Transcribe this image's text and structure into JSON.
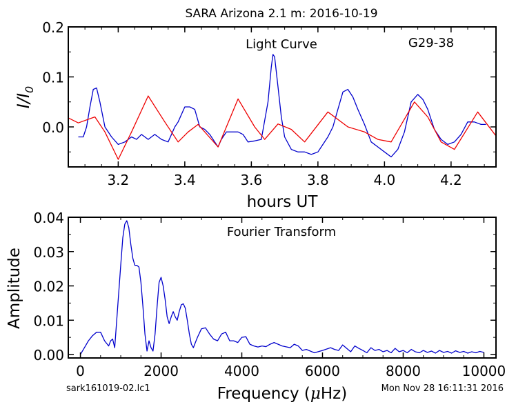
{
  "figure": {
    "title": "SARA Arizona 2.1 m:  2016-10-19",
    "filename": "sark161019-02.lc1",
    "timestamp": "Mon Nov 28 16:11:31 2016"
  },
  "chart_data": [
    {
      "type": "line",
      "panel": "top",
      "label": "Light Curve",
      "annotation": "G29-38",
      "xlabel": "hours UT",
      "ylabel_main": "I/I",
      "ylabel_sub": "0",
      "xlim": [
        3.05,
        4.335
      ],
      "ylim": [
        -0.08,
        0.2
      ],
      "xticks": [
        3.2,
        3.4,
        3.6,
        3.8,
        4.0,
        4.2
      ],
      "xtick_labels": [
        "3.2",
        "3.4",
        "3.6",
        "3.8",
        "4.0",
        "4.2"
      ],
      "yticks": [
        0.0,
        0.1,
        0.2
      ],
      "ytick_labels": [
        "0.0",
        "0.1",
        "0.2"
      ],
      "grid": false,
      "series": [
        {
          "color": "#0000cc",
          "x": [
            3.08,
            3.095,
            3.105,
            3.115,
            3.125,
            3.135,
            3.145,
            3.16,
            3.18,
            3.2,
            3.22,
            3.24,
            3.255,
            3.27,
            3.29,
            3.31,
            3.33,
            3.35,
            3.37,
            3.38,
            3.4,
            3.415,
            3.43,
            3.445,
            3.46,
            3.475,
            3.49,
            3.5,
            3.51,
            3.525,
            3.54,
            3.56,
            3.575,
            3.59,
            3.61,
            3.63,
            3.65,
            3.66,
            3.665,
            3.67,
            3.68,
            3.69,
            3.7,
            3.72,
            3.74,
            3.76,
            3.78,
            3.8,
            3.815,
            3.83,
            3.845,
            3.86,
            3.875,
            3.89,
            3.905,
            3.92,
            3.94,
            3.96,
            3.98,
            4.0,
            4.02,
            4.04,
            4.06,
            4.08,
            4.1,
            4.115,
            4.13,
            4.15,
            4.17,
            4.19,
            4.21,
            4.23,
            4.25,
            4.27,
            4.29,
            4.305
          ],
          "y": [
            -0.02,
            -0.02,
            0.0,
            0.04,
            0.075,
            0.078,
            0.05,
            0.0,
            -0.02,
            -0.035,
            -0.03,
            -0.02,
            -0.025,
            -0.015,
            -0.025,
            -0.015,
            -0.025,
            -0.03,
            0.0,
            0.01,
            0.04,
            0.04,
            0.035,
            0.0,
            -0.005,
            -0.015,
            -0.03,
            -0.04,
            -0.025,
            -0.01,
            -0.01,
            -0.01,
            -0.015,
            -0.03,
            -0.028,
            -0.025,
            0.05,
            0.12,
            0.145,
            0.14,
            0.08,
            0.02,
            -0.02,
            -0.045,
            -0.05,
            -0.05,
            -0.055,
            -0.05,
            -0.035,
            -0.02,
            0.0,
            0.035,
            0.07,
            0.075,
            0.06,
            0.035,
            0.005,
            -0.03,
            -0.04,
            -0.05,
            -0.06,
            -0.045,
            -0.01,
            0.05,
            0.065,
            0.055,
            0.035,
            -0.005,
            -0.025,
            -0.035,
            -0.03,
            -0.015,
            0.01,
            0.01,
            0.005,
            0.005
          ]
        },
        {
          "color": "#ee0000",
          "x": [
            3.05,
            3.08,
            3.13,
            3.16,
            3.2,
            3.24,
            3.29,
            3.34,
            3.38,
            3.41,
            3.44,
            3.5,
            3.56,
            3.61,
            3.64,
            3.68,
            3.72,
            3.76,
            3.83,
            3.89,
            3.94,
            3.98,
            4.02,
            4.09,
            4.13,
            4.17,
            4.21,
            4.28,
            4.335
          ],
          "y": [
            0.018,
            0.008,
            0.02,
            -0.01,
            -0.065,
            -0.01,
            0.062,
            0.01,
            -0.03,
            -0.01,
            0.005,
            -0.04,
            0.056,
            0.0,
            -0.025,
            0.006,
            -0.005,
            -0.03,
            0.03,
            0.0,
            -0.01,
            -0.025,
            -0.03,
            0.05,
            0.02,
            -0.03,
            -0.045,
            0.03,
            -0.018
          ]
        }
      ]
    },
    {
      "type": "line",
      "panel": "bottom",
      "label": "Fourier Transform",
      "xlabel_main": "Frequency (",
      "xlabel_mu": "μ",
      "xlabel_end": "Hz)",
      "ylabel": "Amplitude",
      "xlim": [
        -300,
        10300
      ],
      "ylim": [
        -0.001,
        0.04
      ],
      "xticks": [
        0,
        2000,
        4000,
        6000,
        8000,
        10000
      ],
      "xtick_labels": [
        "0",
        "2000",
        "4000",
        "6000",
        "8000",
        "10000"
      ],
      "yticks": [
        0.0,
        0.01,
        0.02,
        0.03,
        0.04
      ],
      "ytick_labels": [
        "0.00",
        "0.01",
        "0.02",
        "0.03",
        "0.04"
      ],
      "grid": false,
      "series": [
        {
          "color": "#0000cc",
          "x": [
            0,
            100,
            200,
            300,
            400,
            500,
            600,
            700,
            750,
            800,
            850,
            900,
            950,
            1000,
            1050,
            1100,
            1150,
            1200,
            1250,
            1300,
            1350,
            1400,
            1450,
            1500,
            1550,
            1600,
            1650,
            1700,
            1750,
            1800,
            1850,
            1900,
            1950,
            2000,
            2050,
            2100,
            2150,
            2200,
            2250,
            2300,
            2350,
            2400,
            2450,
            2500,
            2550,
            2600,
            2650,
            2700,
            2750,
            2800,
            2850,
            2900,
            3000,
            3100,
            3200,
            3300,
            3400,
            3500,
            3600,
            3700,
            3800,
            3900,
            4000,
            4100,
            4200,
            4300,
            4400,
            4500,
            4600,
            4700,
            4800,
            5000,
            5200,
            5300,
            5400,
            5500,
            5600,
            5800,
            6000,
            6200,
            6300,
            6400,
            6500,
            6600,
            6700,
            6800,
            6900,
            7000,
            7100,
            7200,
            7300,
            7400,
            7500,
            7600,
            7700,
            7800,
            7900,
            8000,
            8100,
            8200,
            8300,
            8400,
            8500,
            8600,
            8700,
            8800,
            8900,
            9000,
            9100,
            9200,
            9300,
            9400,
            9500,
            9600,
            9700,
            9800,
            9900,
            10000
          ],
          "y": [
            0.0,
            0.002,
            0.004,
            0.0055,
            0.0065,
            0.0065,
            0.004,
            0.0025,
            0.004,
            0.0045,
            0.002,
            0.01,
            0.018,
            0.026,
            0.034,
            0.038,
            0.039,
            0.037,
            0.032,
            0.028,
            0.026,
            0.026,
            0.0255,
            0.021,
            0.014,
            0.006,
            0.001,
            0.004,
            0.002,
            0.001,
            0.006,
            0.014,
            0.021,
            0.0225,
            0.02,
            0.016,
            0.011,
            0.009,
            0.011,
            0.0125,
            0.011,
            0.01,
            0.0125,
            0.0145,
            0.0148,
            0.0135,
            0.01,
            0.006,
            0.003,
            0.002,
            0.0035,
            0.005,
            0.0075,
            0.0078,
            0.006,
            0.0045,
            0.004,
            0.006,
            0.0065,
            0.004,
            0.004,
            0.0035,
            0.005,
            0.0052,
            0.003,
            0.0025,
            0.0022,
            0.0025,
            0.0023,
            0.003,
            0.0035,
            0.0025,
            0.002,
            0.003,
            0.0025,
            0.0012,
            0.0015,
            0.0005,
            0.0012,
            0.002,
            0.0015,
            0.0012,
            0.0028,
            0.0018,
            0.0008,
            0.0025,
            0.0018,
            0.0012,
            0.0005,
            0.002,
            0.0012,
            0.0015,
            0.0008,
            0.0012,
            0.0005,
            0.0018,
            0.0008,
            0.0012,
            0.0005,
            0.0015,
            0.0008,
            0.0005,
            0.0012,
            0.0006,
            0.001,
            0.0004,
            0.0012,
            0.0006,
            0.0009,
            0.0004,
            0.0011,
            0.0006,
            0.0009,
            0.0004,
            0.0008,
            0.0005,
            0.0009,
            0.0006
          ]
        }
      ]
    }
  ]
}
